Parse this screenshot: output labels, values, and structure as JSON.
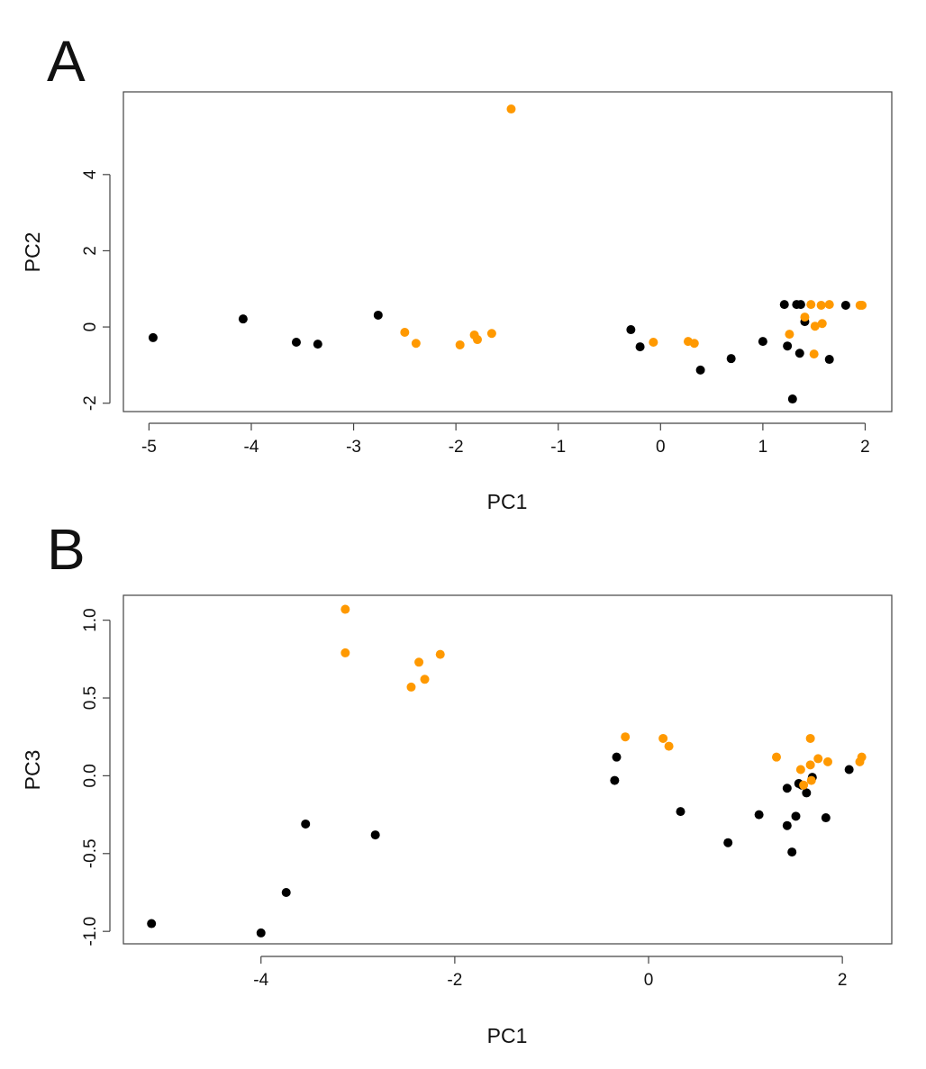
{
  "chart_data": [
    {
      "type": "scatter",
      "panel_label": "A",
      "xlabel": "PC1",
      "ylabel": "PC2",
      "xlim": [
        -5.25,
        2.26
      ],
      "ylim": [
        -2.22,
        6.17
      ],
      "xticks": [
        -5,
        -4,
        -3,
        -2,
        -1,
        0,
        1,
        2
      ],
      "yticks": [
        -2,
        0,
        2,
        4
      ],
      "grid": false,
      "series": [
        {
          "name": "black",
          "color": "#000000",
          "points": [
            [
              -4.96,
              -0.28
            ],
            [
              -4.08,
              0.21
            ],
            [
              -3.56,
              -0.4
            ],
            [
              -3.35,
              -0.45
            ],
            [
              -2.76,
              0.31
            ],
            [
              -0.29,
              -0.07
            ],
            [
              -0.2,
              -0.52
            ],
            [
              0.39,
              -1.13
            ],
            [
              0.69,
              -0.83
            ],
            [
              1.0,
              -0.38
            ],
            [
              1.21,
              0.59
            ],
            [
              1.33,
              0.59
            ],
            [
              1.37,
              0.59
            ],
            [
              1.81,
              0.57
            ],
            [
              1.41,
              0.14
            ],
            [
              1.24,
              -0.5
            ],
            [
              1.36,
              -0.69
            ],
            [
              1.65,
              -0.85
            ],
            [
              1.29,
              -1.89
            ]
          ]
        },
        {
          "name": "orange",
          "color": "#FF9900",
          "points": [
            [
              -1.46,
              5.72
            ],
            [
              -2.5,
              -0.14
            ],
            [
              -2.39,
              -0.43
            ],
            [
              -1.96,
              -0.47
            ],
            [
              -1.82,
              -0.21
            ],
            [
              -1.79,
              -0.33
            ],
            [
              -1.65,
              -0.17
            ],
            [
              -0.07,
              -0.4
            ],
            [
              0.27,
              -0.38
            ],
            [
              0.33,
              -0.43
            ],
            [
              1.47,
              0.59
            ],
            [
              1.57,
              0.57
            ],
            [
              1.65,
              0.59
            ],
            [
              1.95,
              0.57
            ],
            [
              1.97,
              0.57
            ],
            [
              1.41,
              0.26
            ],
            [
              1.51,
              0.02
            ],
            [
              1.58,
              0.09
            ],
            [
              1.26,
              -0.19
            ],
            [
              1.5,
              -0.71
            ]
          ]
        }
      ]
    },
    {
      "type": "scatter",
      "panel_label": "B",
      "xlabel": "PC1",
      "ylabel": "PC3",
      "xlim": [
        -5.42,
        2.51
      ],
      "ylim": [
        -1.08,
        1.16
      ],
      "xticks": [
        -4,
        -2,
        0,
        2
      ],
      "yticks": [
        -1.0,
        -0.5,
        0.0,
        0.5,
        1.0
      ],
      "ytick_labels": [
        "-1.0",
        "-0.5",
        "0.0",
        "0.5",
        "1.0"
      ],
      "grid": false,
      "series": [
        {
          "name": "black",
          "color": "#000000",
          "points": [
            [
              -5.13,
              -0.95
            ],
            [
              -4.0,
              -1.01
            ],
            [
              -3.74,
              -0.75
            ],
            [
              -3.54,
              -0.31
            ],
            [
              -2.82,
              -0.38
            ],
            [
              -0.33,
              0.12
            ],
            [
              -0.35,
              -0.03
            ],
            [
              0.33,
              -0.23
            ],
            [
              0.82,
              -0.43
            ],
            [
              1.14,
              -0.25
            ],
            [
              2.07,
              0.04
            ],
            [
              1.43,
              -0.08
            ],
            [
              1.55,
              -0.05
            ],
            [
              1.58,
              -0.06
            ],
            [
              1.69,
              -0.01
            ],
            [
              1.63,
              -0.11
            ],
            [
              1.52,
              -0.26
            ],
            [
              1.43,
              -0.32
            ],
            [
              1.83,
              -0.27
            ],
            [
              1.48,
              -0.49
            ]
          ]
        },
        {
          "name": "orange",
          "color": "#FF9900",
          "points": [
            [
              -3.13,
              1.07
            ],
            [
              -3.13,
              0.79
            ],
            [
              -2.37,
              0.73
            ],
            [
              -2.31,
              0.62
            ],
            [
              -2.15,
              0.78
            ],
            [
              -2.45,
              0.57
            ],
            [
              -0.24,
              0.25
            ],
            [
              0.15,
              0.24
            ],
            [
              0.21,
              0.19
            ],
            [
              1.67,
              0.24
            ],
            [
              1.32,
              0.12
            ],
            [
              1.75,
              0.11
            ],
            [
              1.85,
              0.09
            ],
            [
              1.67,
              0.07
            ],
            [
              1.57,
              0.04
            ],
            [
              2.2,
              0.12
            ],
            [
              2.18,
              0.09
            ],
            [
              1.68,
              -0.03
            ],
            [
              1.6,
              -0.06
            ]
          ]
        }
      ]
    }
  ]
}
